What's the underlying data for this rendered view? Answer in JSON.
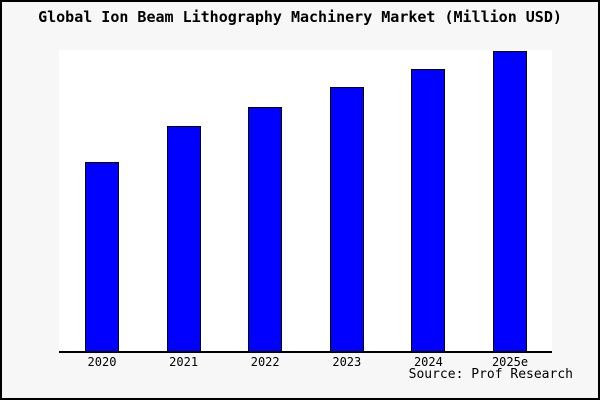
{
  "chart_data": {
    "type": "bar",
    "title": "Global Ion Beam Lithography Machinery Market (Million USD)",
    "categories": [
      "2020",
      "2021",
      "2022",
      "2023",
      "2024",
      "2025e"
    ],
    "values": [
      63,
      75,
      81.5,
      88,
      94,
      100
    ],
    "value_scale_note": "chart shows no numeric y-axis; values estimated from bar heights, tallest bar = 100",
    "xlabel": "",
    "ylabel": "",
    "ylim": [
      0,
      100.5
    ],
    "grid": false,
    "legend": false,
    "colors": {
      "bar_fill": "#0000ff",
      "bar_border": "#000000",
      "plot_background": "#ffffff",
      "figure_background": "#f7f7f7",
      "frame_border": "#000000",
      "text": "#000000"
    }
  },
  "footer": {
    "source": "Source: Prof Research"
  }
}
